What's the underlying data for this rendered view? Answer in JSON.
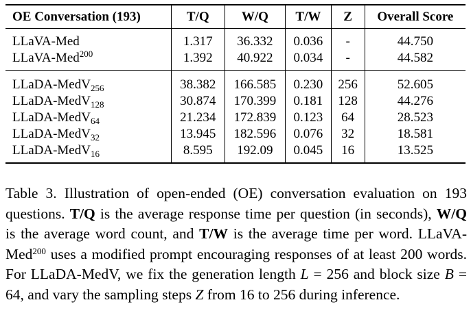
{
  "table": {
    "headers": [
      "OE Conversation (193)",
      "T/Q",
      "W/Q",
      "T/W",
      "Z",
      "Overall Score"
    ],
    "rows": [
      {
        "model": "LLaVA-Med",
        "sub": "",
        "sup": "",
        "tq": "1.317",
        "wq": "36.332",
        "tw": "0.036",
        "z": "-",
        "score": "44.750"
      },
      {
        "model": "LLaVA-Med",
        "sub": "",
        "sup": "200",
        "tq": "1.392",
        "wq": "40.922",
        "tw": "0.034",
        "z": "-",
        "score": "44.582"
      },
      {
        "model": "LLaDA-MedV",
        "sub": "256",
        "sup": "",
        "tq": "38.382",
        "wq": "166.585",
        "tw": "0.230",
        "z": "256",
        "score": "52.605"
      },
      {
        "model": "LLaDA-MedV",
        "sub": "128",
        "sup": "",
        "tq": "30.874",
        "wq": "170.399",
        "tw": "0.181",
        "z": "128",
        "score": "44.276"
      },
      {
        "model": "LLaDA-MedV",
        "sub": "64",
        "sup": "",
        "tq": "21.234",
        "wq": "172.839",
        "tw": "0.123",
        "z": "64",
        "score": "28.523"
      },
      {
        "model": "LLaDA-MedV",
        "sub": "32",
        "sup": "",
        "tq": "13.945",
        "wq": "182.596",
        "tw": "0.076",
        "z": "32",
        "score": "18.581"
      },
      {
        "model": "LLaDA-MedV",
        "sub": "16",
        "sup": "",
        "tq": "8.595",
        "wq": "192.09",
        "tw": "0.045",
        "z": "16",
        "score": "13.525"
      }
    ]
  },
  "caption": {
    "s1": "Table 3. Illustration of open-ended (OE) conversation evaluation on 193 questions. ",
    "b1": "T/Q",
    "s2": " is the average response time per question (in seconds), ",
    "b2": "W/Q",
    "s3": " is the average word count, and ",
    "b3": "T/W",
    "s4": " is the average time per word. LLaVA-Med",
    "sup1": "200",
    "s5": " uses a modified prompt encouraging responses of at least 200 words. For LLaDA-MedV, we fix the generation length ",
    "L": "L",
    "eq1": " = 256 and block size ",
    "B": "B",
    "eq2": " = 64, and vary the sampling steps ",
    "Z": "Z",
    "s6": " from 16 to 256 during inference."
  }
}
